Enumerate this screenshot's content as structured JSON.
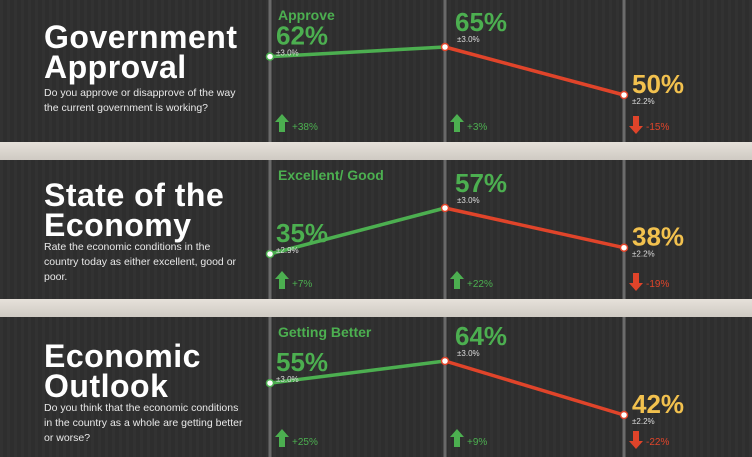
{
  "colors": {
    "up": "#4caf50",
    "down": "#e0442a",
    "latest": "#f2c14e",
    "background": "#2f2f2f",
    "title": "#ffffff"
  },
  "panels": [
    {
      "title_line1": "Government",
      "title_line2": "Approval",
      "question": "Do you approve or disapprove of the way the current government is working?",
      "measure_label": "Approve",
      "points": [
        {
          "value": "62%",
          "margin": "±3.0%",
          "change": "+38%",
          "direction": "up"
        },
        {
          "value": "65%",
          "margin": "±3.0%",
          "change": "+3%",
          "direction": "up"
        },
        {
          "value": "50%",
          "margin": "±2.2%",
          "change": "-15%",
          "direction": "down"
        }
      ]
    },
    {
      "title_line1": "State of the",
      "title_line2": "Economy",
      "question": "Rate the economic conditions in the country today as either excellent, good or poor.",
      "measure_label": "Excellent/ Good",
      "points": [
        {
          "value": "35%",
          "margin": "±2.9%",
          "change": "+7%",
          "direction": "up"
        },
        {
          "value": "57%",
          "margin": "±3.0%",
          "change": "+22%",
          "direction": "up"
        },
        {
          "value": "38%",
          "margin": "±2.2%",
          "change": "-19%",
          "direction": "down"
        }
      ]
    },
    {
      "title_line1": "Economic",
      "title_line2": "Outlook",
      "question": "Do you think that the economic conditions in the country as a whole are getting better or worse?",
      "measure_label": "Getting Better",
      "points": [
        {
          "value": "55%",
          "margin": "±3.0%",
          "change": "+25%",
          "direction": "up"
        },
        {
          "value": "64%",
          "margin": "±3.0%",
          "change": "+9%",
          "direction": "up"
        },
        {
          "value": "42%",
          "margin": "±2.2%",
          "change": "-22%",
          "direction": "down"
        }
      ]
    }
  ],
  "chart_data": [
    {
      "type": "line",
      "title": "Government Approval",
      "series": [
        {
          "name": "Approve",
          "values": [
            62,
            65,
            50
          ]
        }
      ]
    },
    {
      "type": "line",
      "title": "State of the Economy",
      "series": [
        {
          "name": "Excellent/ Good",
          "values": [
            35,
            57,
            38
          ]
        }
      ]
    },
    {
      "type": "line",
      "title": "Economic Outlook",
      "series": [
        {
          "name": "Getting Better",
          "values": [
            55,
            64,
            42
          ]
        }
      ]
    }
  ]
}
